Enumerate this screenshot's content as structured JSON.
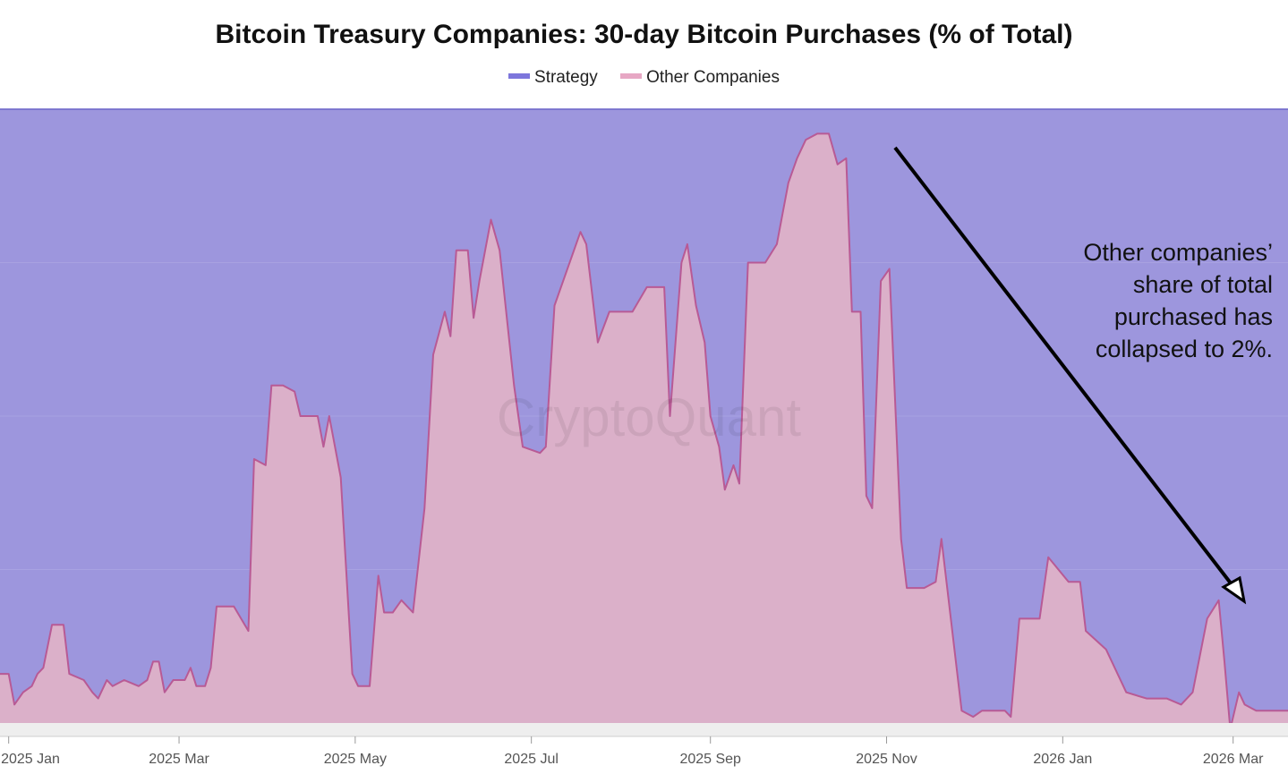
{
  "chart_data": {
    "type": "area",
    "title": "Bitcoin Treasury Companies: 30-day Bitcoin Purchases (% of Total)",
    "stacked": true,
    "ylim": [
      0,
      100
    ],
    "xlim": [
      "2024-12-29",
      "2026-03-20"
    ],
    "grid": true,
    "legend_position": "top-center",
    "x_ticks": [
      {
        "date": "2025-01-01",
        "label": "2025 Jan"
      },
      {
        "date": "2025-03-01",
        "label": "2025 Mar"
      },
      {
        "date": "2025-05-01",
        "label": "2025 May"
      },
      {
        "date": "2025-07-01",
        "label": "2025 Jul"
      },
      {
        "date": "2025-09-01",
        "label": "2025 Sep"
      },
      {
        "date": "2025-11-01",
        "label": "2025 Nov"
      },
      {
        "date": "2026-01-01",
        "label": "2026 Jan"
      },
      {
        "date": "2026-03-01",
        "label": "2026 Mar"
      }
    ],
    "series": [
      {
        "name": "Strategy",
        "color": "#9d96dd",
        "line_color": "#6b64c8",
        "legend_color": "#7d76dc",
        "note": "Strategy share = 100 - Other Companies share"
      },
      {
        "name": "Other Companies",
        "color": "#dbb0c9",
        "line_color": "#b85a95",
        "legend_color": "#e7a7c4",
        "points": [
          [
            "2024-12-29",
            8
          ],
          [
            "2025-01-01",
            8
          ],
          [
            "2025-01-03",
            3
          ],
          [
            "2025-01-06",
            5
          ],
          [
            "2025-01-09",
            6
          ],
          [
            "2025-01-11",
            8
          ],
          [
            "2025-01-13",
            9
          ],
          [
            "2025-01-16",
            16
          ],
          [
            "2025-01-20",
            16
          ],
          [
            "2025-01-22",
            8
          ],
          [
            "2025-01-27",
            7
          ],
          [
            "2025-01-30",
            5
          ],
          [
            "2025-02-01",
            4
          ],
          [
            "2025-02-04",
            7
          ],
          [
            "2025-02-06",
            6
          ],
          [
            "2025-02-10",
            7
          ],
          [
            "2025-02-15",
            6
          ],
          [
            "2025-02-18",
            7
          ],
          [
            "2025-02-20",
            10
          ],
          [
            "2025-02-22",
            10
          ],
          [
            "2025-02-24",
            5
          ],
          [
            "2025-02-27",
            7
          ],
          [
            "2025-03-03",
            7
          ],
          [
            "2025-03-05",
            9
          ],
          [
            "2025-03-07",
            6
          ],
          [
            "2025-03-10",
            6
          ],
          [
            "2025-03-12",
            9
          ],
          [
            "2025-03-14",
            19
          ],
          [
            "2025-03-20",
            19
          ],
          [
            "2025-03-25",
            15
          ],
          [
            "2025-03-27",
            43
          ],
          [
            "2025-03-31",
            42
          ],
          [
            "2025-04-02",
            55
          ],
          [
            "2025-04-06",
            55
          ],
          [
            "2025-04-10",
            54
          ],
          [
            "2025-04-12",
            50
          ],
          [
            "2025-04-18",
            50
          ],
          [
            "2025-04-20",
            45
          ],
          [
            "2025-04-22",
            50
          ],
          [
            "2025-04-26",
            40
          ],
          [
            "2025-04-30",
            8
          ],
          [
            "2025-05-02",
            6
          ],
          [
            "2025-05-06",
            6
          ],
          [
            "2025-05-09",
            24
          ],
          [
            "2025-05-11",
            18
          ],
          [
            "2025-05-14",
            18
          ],
          [
            "2025-05-17",
            20
          ],
          [
            "2025-05-21",
            18
          ],
          [
            "2025-05-25",
            35
          ],
          [
            "2025-05-28",
            60
          ],
          [
            "2025-06-01",
            67
          ],
          [
            "2025-06-03",
            63
          ],
          [
            "2025-06-05",
            77
          ],
          [
            "2025-06-09",
            77
          ],
          [
            "2025-06-11",
            66
          ],
          [
            "2025-06-13",
            72
          ],
          [
            "2025-06-17",
            82
          ],
          [
            "2025-06-20",
            77
          ],
          [
            "2025-06-25",
            55
          ],
          [
            "2025-06-28",
            45
          ],
          [
            "2025-07-04",
            44
          ],
          [
            "2025-07-06",
            45
          ],
          [
            "2025-07-09",
            68
          ],
          [
            "2025-07-18",
            80
          ],
          [
            "2025-07-20",
            78
          ],
          [
            "2025-07-24",
            62
          ],
          [
            "2025-07-28",
            67
          ],
          [
            "2025-08-05",
            67
          ],
          [
            "2025-08-10",
            71
          ],
          [
            "2025-08-16",
            71
          ],
          [
            "2025-08-18",
            50
          ],
          [
            "2025-08-22",
            75
          ],
          [
            "2025-08-24",
            78
          ],
          [
            "2025-08-27",
            68
          ],
          [
            "2025-08-30",
            62
          ],
          [
            "2025-09-01",
            50
          ],
          [
            "2025-09-04",
            45
          ],
          [
            "2025-09-06",
            38
          ],
          [
            "2025-09-09",
            42
          ],
          [
            "2025-09-11",
            39
          ],
          [
            "2025-09-14",
            75
          ],
          [
            "2025-09-20",
            75
          ],
          [
            "2025-09-24",
            78
          ],
          [
            "2025-09-28",
            88
          ],
          [
            "2025-10-01",
            92
          ],
          [
            "2025-10-04",
            95
          ],
          [
            "2025-10-08",
            96
          ],
          [
            "2025-10-12",
            96
          ],
          [
            "2025-10-15",
            91
          ],
          [
            "2025-10-18",
            92
          ],
          [
            "2025-10-20",
            67
          ],
          [
            "2025-10-23",
            67
          ],
          [
            "2025-10-25",
            37
          ],
          [
            "2025-10-27",
            35
          ],
          [
            "2025-10-30",
            72
          ],
          [
            "2025-11-02",
            74
          ],
          [
            "2025-11-06",
            30
          ],
          [
            "2025-11-08",
            22
          ],
          [
            "2025-11-14",
            22
          ],
          [
            "2025-11-18",
            23
          ],
          [
            "2025-11-20",
            30
          ],
          [
            "2025-11-27",
            2
          ],
          [
            "2025-12-01",
            1
          ],
          [
            "2025-12-04",
            2
          ],
          [
            "2025-12-12",
            2
          ],
          [
            "2025-12-14",
            1
          ],
          [
            "2025-12-17",
            17
          ],
          [
            "2025-12-24",
            17
          ],
          [
            "2025-12-27",
            27
          ],
          [
            "2026-01-03",
            23
          ],
          [
            "2026-01-07",
            23
          ],
          [
            "2026-01-09",
            15
          ],
          [
            "2026-01-16",
            12
          ],
          [
            "2026-01-23",
            5
          ],
          [
            "2026-01-30",
            4
          ],
          [
            "2026-02-06",
            4
          ],
          [
            "2026-02-11",
            3
          ],
          [
            "2026-02-15",
            5
          ],
          [
            "2026-02-20",
            17
          ],
          [
            "2026-02-24",
            20
          ],
          [
            "2026-02-26",
            10
          ],
          [
            "2026-02-28",
            -1
          ],
          [
            "2026-03-03",
            5
          ],
          [
            "2026-03-05",
            3
          ],
          [
            "2026-03-09",
            2
          ],
          [
            "2026-03-13",
            2
          ],
          [
            "2026-03-20",
            2
          ]
        ]
      }
    ],
    "watermark": "CryptoQuant",
    "annotation": {
      "lines": [
        "Other companies’",
        "share of total",
        "purchased has",
        "collapsed to 2%."
      ],
      "arrow": "points down-right toward the late-2025 / 2026 Mar section"
    }
  }
}
